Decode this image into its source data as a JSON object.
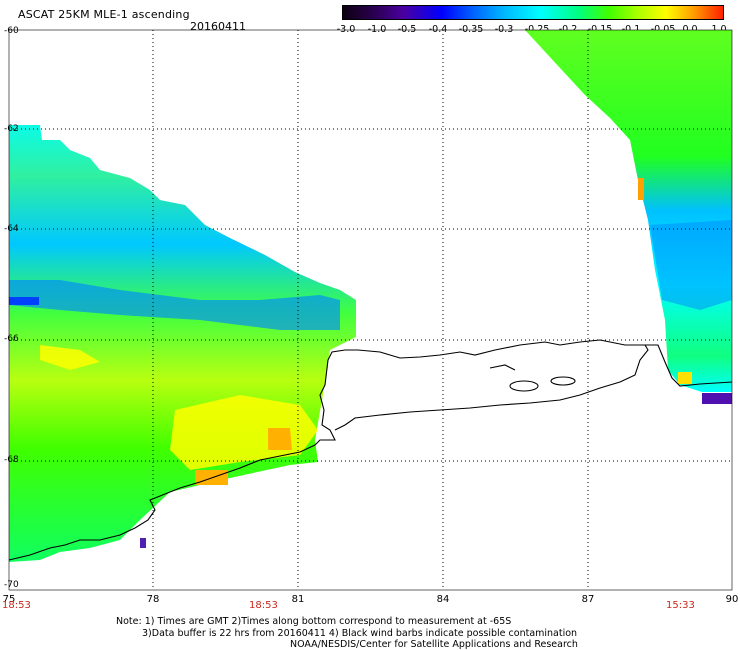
{
  "header": {
    "title": "ASCAT 25KM MLE-1 ascending",
    "date": "20160411"
  },
  "colorbar": {
    "labels": [
      "-3.0",
      "-1.0",
      "-0.5",
      "-0.4",
      "-0.35",
      "-0.3",
      "-0.25",
      "-0.2",
      "-0.15",
      "-0.1",
      "-0.05",
      "0.0",
      "1.0"
    ],
    "colors": [
      "#0d0010",
      "#4a00a0",
      "#0000ff",
      "#00b4ff",
      "#00ffff",
      "#40ff00",
      "#ffff00",
      "#ffa000",
      "#ff2000"
    ]
  },
  "axes": {
    "x_ticks": [
      "75",
      "78",
      "81",
      "84",
      "87",
      "90"
    ],
    "y_ticks": [
      "-60",
      "-62",
      "-64",
      "-66",
      "-68",
      "-70"
    ]
  },
  "times": {
    "left": "18:53",
    "middle": "18:53",
    "right": "15:33"
  },
  "notes": {
    "line1": "Note: 1) Times are GMT 2)Times along bottom correspond to measurement at -65S",
    "line2": "3)Data buffer is 22 hrs from 20160411 4) Black wind barbs indicate possible contamination",
    "line3": "NOAA/NESDIS/Center for Satellite Applications and Research"
  }
}
